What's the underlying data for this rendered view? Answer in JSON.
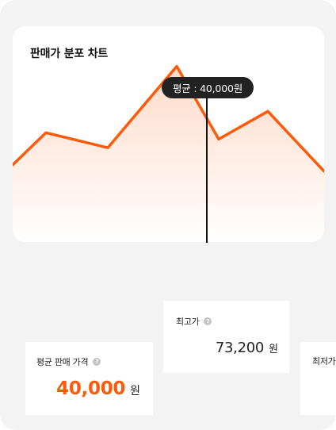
{
  "chart": {
    "title": "판매가 분포 차트",
    "tooltip": "평균 : 40,000원",
    "accent_color": "#FF5A0A"
  },
  "chart_data": {
    "type": "area",
    "title": "판매가 분포 차트",
    "xlabel": "",
    "ylabel": "",
    "series": [
      {
        "values": [
          0.36,
          0.51,
          0.44,
          0.82,
          0.48,
          0.61,
          0.33
        ]
      }
    ],
    "annotations": [
      "평균 : 40,000원"
    ],
    "grid": false
  },
  "stats": {
    "average": {
      "label": "평균 판매 가격",
      "value": "40,000",
      "unit": "원"
    },
    "max": {
      "label": "최고가",
      "value": "73,200",
      "unit": "원"
    },
    "min": {
      "label": "최저가"
    }
  }
}
